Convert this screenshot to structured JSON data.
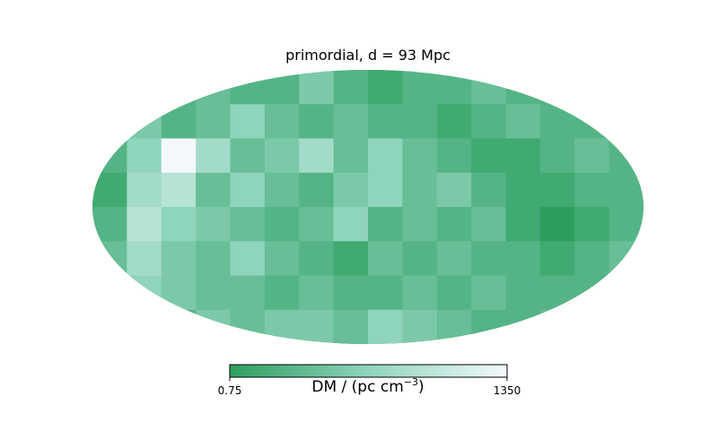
{
  "chart_data": {
    "type": "heatmap",
    "projection": "mollweide",
    "title": "primordial, d = 93 Mpc",
    "colorbar": {
      "label": "DM / (pc cm",
      "label_exp": "−3",
      "label_close": ")",
      "min_label": "0.75",
      "max_label": "1350",
      "vmin": 0.75,
      "vmax": 1350,
      "colors": [
        "#2e9e5f",
        "#8fd4bd",
        "#f3f9fb"
      ]
    },
    "grid_size": [
      16,
      8
    ],
    "cells": [
      [
        2,
        1,
        2,
        3,
        2,
        2,
        4,
        2,
        1,
        2,
        2,
        3,
        2,
        2,
        3,
        2
      ],
      [
        2,
        4,
        2,
        3,
        5,
        3,
        2,
        3,
        2,
        2,
        1,
        2,
        3,
        2,
        2,
        4
      ],
      [
        2,
        5,
        10,
        6,
        3,
        4,
        6,
        3,
        5,
        3,
        2,
        1,
        1,
        2,
        3,
        2
      ],
      [
        1,
        6,
        7,
        3,
        5,
        3,
        2,
        4,
        5,
        3,
        4,
        2,
        1,
        1,
        2,
        2
      ],
      [
        2,
        7,
        5,
        4,
        3,
        2,
        3,
        5,
        2,
        3,
        2,
        3,
        1,
        0,
        1,
        2
      ],
      [
        3,
        6,
        4,
        3,
        5,
        3,
        2,
        1,
        3,
        2,
        3,
        2,
        2,
        1,
        2,
        3
      ],
      [
        3,
        5,
        4,
        3,
        3,
        2,
        3,
        2,
        2,
        3,
        2,
        3,
        2,
        2,
        2,
        2
      ],
      [
        2,
        3,
        2,
        4,
        3,
        4,
        4,
        3,
        5,
        4,
        3,
        2,
        2,
        3,
        2,
        2
      ]
    ]
  }
}
